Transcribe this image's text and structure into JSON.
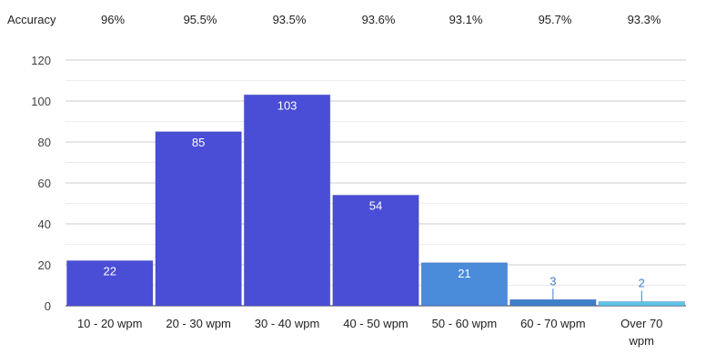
{
  "accuracy": {
    "label": "Accuracy",
    "values": [
      "96%",
      "95.5%",
      "93.5%",
      "93.6%",
      "93.1%",
      "95.7%",
      "93.3%"
    ]
  },
  "chart_data": {
    "type": "bar",
    "categories": [
      [
        "10 - 20 wpm"
      ],
      [
        "20 - 30 wpm"
      ],
      [
        "30 - 40 wpm"
      ],
      [
        "40 - 50 wpm"
      ],
      [
        "50 - 60 wpm"
      ],
      [
        "60 - 70 wpm"
      ],
      [
        "Over 70",
        "wpm"
      ]
    ],
    "values": [
      22,
      85,
      103,
      54,
      21,
      3,
      2
    ],
    "data_labels": [
      "22",
      "85",
      "103",
      "54",
      "21",
      "3",
      "2"
    ],
    "colors": [
      "#4a4ed6",
      "#4a4ed6",
      "#4a4ed6",
      "#4a4ed6",
      "#4a8cd9",
      "#3d7fc9",
      "#5cc6e6"
    ],
    "label_colors": [
      "#ffffff",
      "#ffffff",
      "#ffffff",
      "#ffffff",
      "#ffffff",
      "#3d7fc9",
      "#3d7fc9"
    ],
    "ylim": [
      0,
      120
    ],
    "yticks": [
      "0",
      "20",
      "40",
      "60",
      "80",
      "100",
      "120"
    ],
    "grid": true,
    "title": "",
    "xlabel": "",
    "ylabel": ""
  }
}
